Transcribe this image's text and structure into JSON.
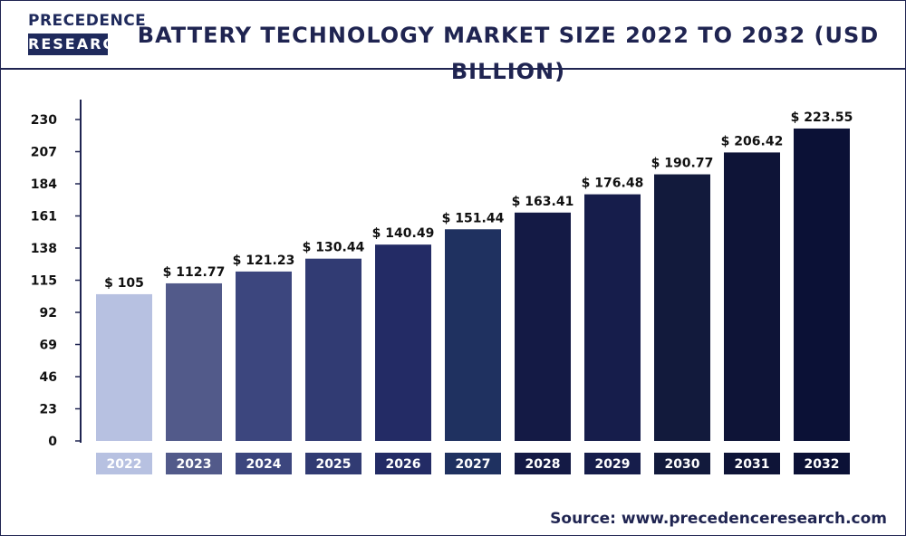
{
  "header": {
    "logo_line1": "PRECEDENCE",
    "logo_line2": "RESEARCH",
    "title": "BATTERY TECHNOLOGY MARKET SIZE 2022 TO 2032 (USD BILLION)"
  },
  "footer": {
    "source": "Source: www.precedenceresearch.com"
  },
  "colors": {
    "frame": "#1f2451",
    "axis": "#1f2451",
    "text": "#111111"
  },
  "chart_data": {
    "type": "bar",
    "title": "BATTERY TECHNOLOGY MARKET SIZE 2022 TO 2032 (USD BILLION)",
    "xlabel": "",
    "ylabel": "",
    "ylim": [
      0,
      230
    ],
    "yticks": [
      0,
      23,
      46,
      69,
      92,
      115,
      138,
      161,
      184,
      207,
      230
    ],
    "grid": false,
    "categories": [
      "2022",
      "2023",
      "2024",
      "2025",
      "2026",
      "2027",
      "2028",
      "2029",
      "2030",
      "2031",
      "2032"
    ],
    "values": [
      105,
      112.77,
      121.23,
      130.44,
      140.49,
      151.44,
      163.41,
      176.48,
      190.77,
      206.42,
      223.55
    ],
    "value_labels": [
      "$ 105",
      "$ 112.77",
      "$ 121.23",
      "$ 130.44",
      "$ 140.49",
      "$ 151.44",
      "$ 163.41",
      "$ 176.48",
      "$ 190.77",
      "$ 206.42",
      "$ 223.55"
    ],
    "bar_colors": [
      "#b7c1e1",
      "#525a8a",
      "#3c467e",
      "#313b73",
      "#232b65",
      "#1f3160",
      "#141a45",
      "#161d4b",
      "#121a3c",
      "#0e1437",
      "#0b1136"
    ]
  }
}
